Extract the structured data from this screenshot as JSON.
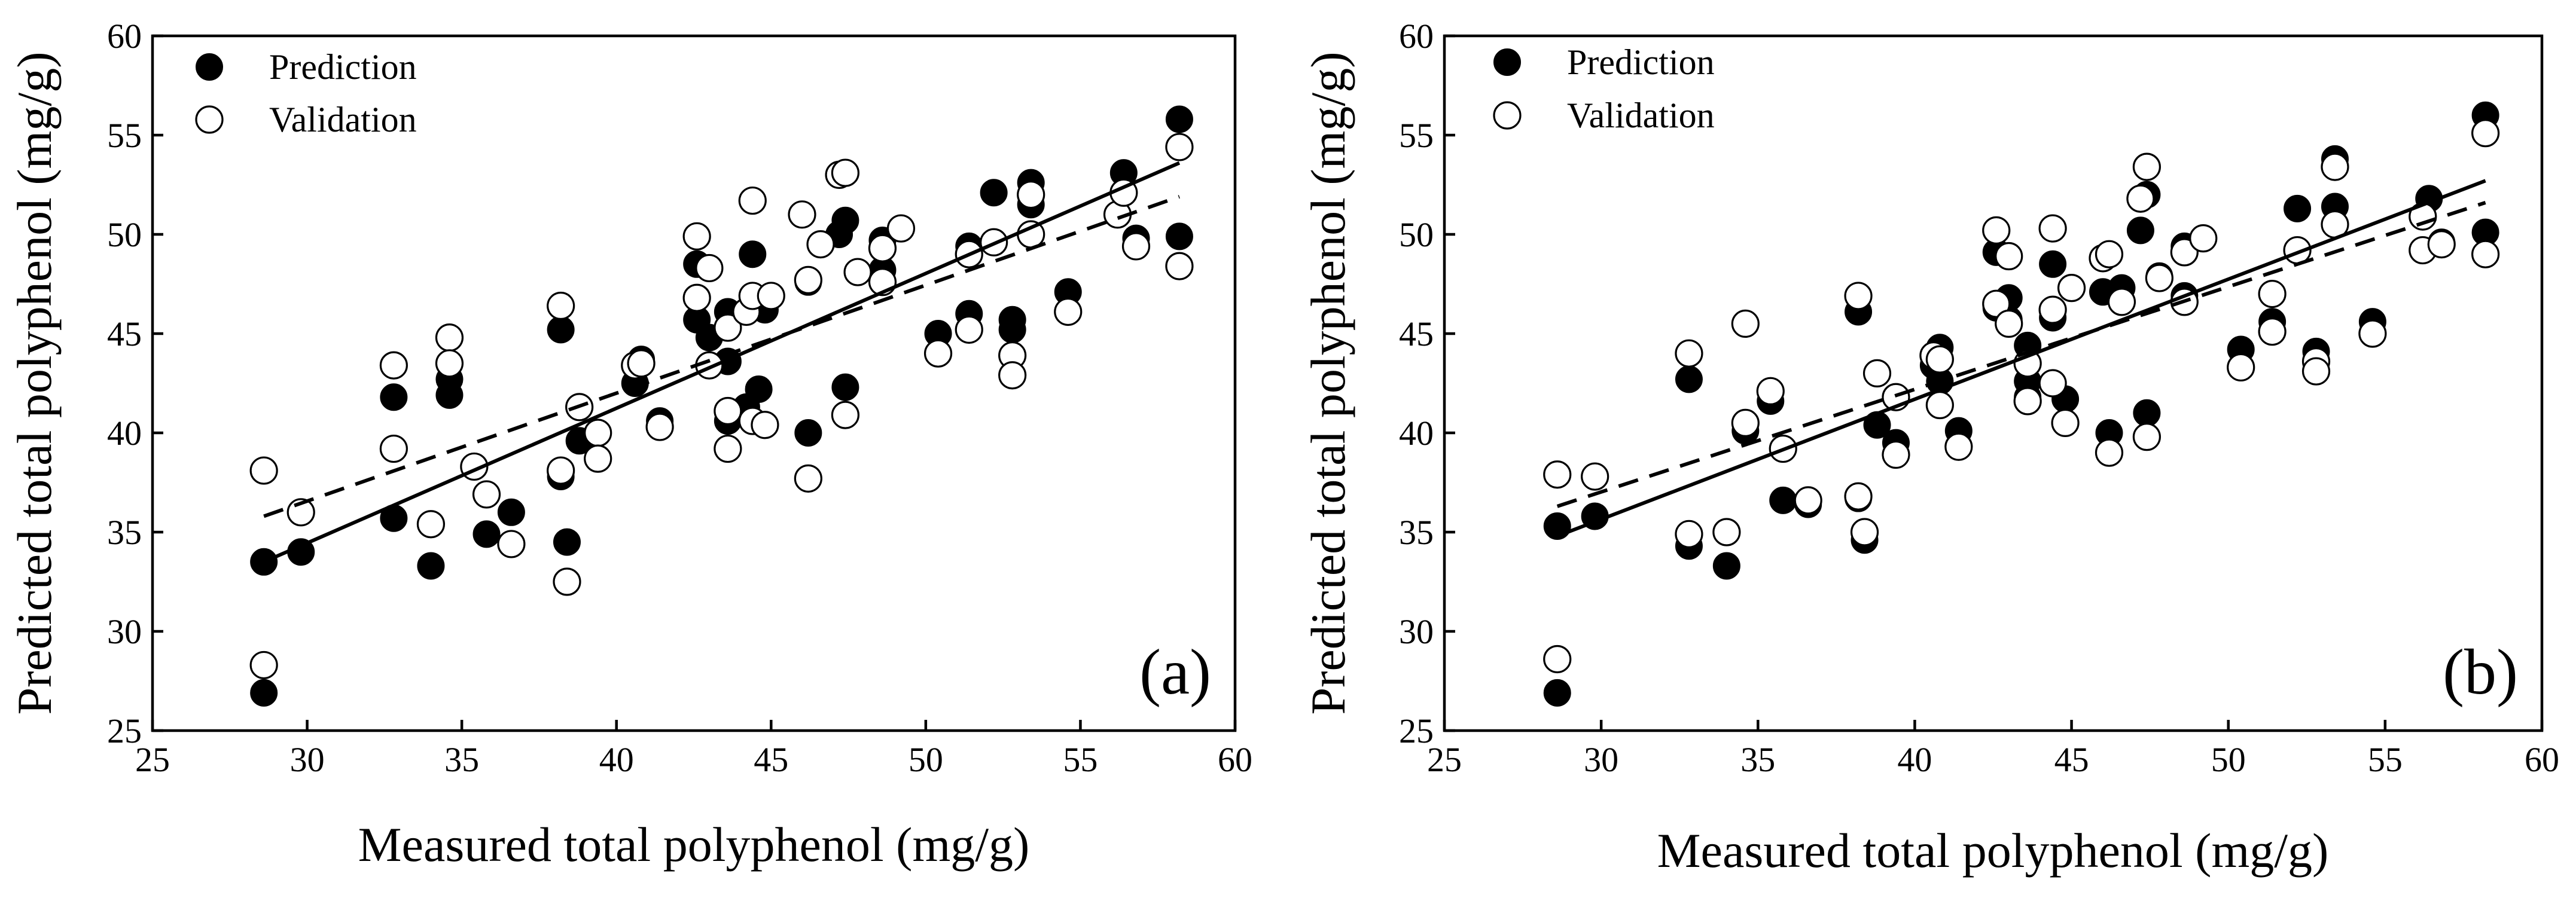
{
  "chart_data": [
    {
      "type": "scatter",
      "panel_label": "(a)",
      "xlabel": "Measured total polyphenol (mg/g)",
      "ylabel": "Predicted total polyphenol (mg/g)",
      "xlim": [
        25,
        60
      ],
      "ylim": [
        25,
        60
      ],
      "xticks": [
        "25",
        "30",
        "35",
        "40",
        "45",
        "50",
        "55",
        "60"
      ],
      "yticks": [
        "25",
        "30",
        "35",
        "40",
        "45",
        "50",
        "55",
        "60"
      ],
      "legend_position": "top-left",
      "series": [
        {
          "name": "Prediction",
          "marker": "filled-circle",
          "points": [
            [
              28.6,
              26.9
            ],
            [
              28.6,
              33.5
            ],
            [
              29.8,
              34.0
            ],
            [
              32.8,
              35.7
            ],
            [
              32.8,
              41.8
            ],
            [
              34.0,
              33.3
            ],
            [
              34.6,
              42.7
            ],
            [
              34.6,
              41.9
            ],
            [
              35.8,
              34.9
            ],
            [
              36.6,
              36.0
            ],
            [
              38.2,
              45.2
            ],
            [
              38.2,
              37.8
            ],
            [
              38.4,
              34.5
            ],
            [
              38.8,
              39.6
            ],
            [
              40.6,
              42.5
            ],
            [
              40.8,
              43.7
            ],
            [
              41.4,
              40.6
            ],
            [
              42.6,
              48.5
            ],
            [
              42.6,
              45.7
            ],
            [
              43.0,
              44.8
            ],
            [
              43.6,
              46.1
            ],
            [
              43.6,
              43.6
            ],
            [
              43.6,
              40.6
            ],
            [
              44.2,
              41.3
            ],
            [
              44.4,
              49.0
            ],
            [
              44.6,
              42.2
            ],
            [
              44.8,
              46.2
            ],
            [
              46.2,
              47.6
            ],
            [
              46.2,
              40.0
            ],
            [
              47.2,
              50.0
            ],
            [
              47.4,
              50.7
            ],
            [
              47.4,
              42.3
            ],
            [
              48.6,
              48.2
            ],
            [
              48.6,
              49.7
            ],
            [
              50.4,
              45.0
            ],
            [
              51.4,
              49.4
            ],
            [
              51.4,
              46.0
            ],
            [
              52.2,
              52.1
            ],
            [
              52.8,
              45.7
            ],
            [
              52.8,
              45.2
            ],
            [
              53.4,
              52.6
            ],
            [
              53.4,
              51.5
            ],
            [
              54.6,
              47.1
            ],
            [
              56.4,
              53.1
            ],
            [
              56.8,
              49.8
            ],
            [
              58.2,
              55.8
            ],
            [
              58.2,
              49.9
            ]
          ]
        },
        {
          "name": "Validation",
          "marker": "open-circle",
          "points": [
            [
              28.6,
              38.1
            ],
            [
              28.6,
              28.3
            ],
            [
              29.8,
              36.0
            ],
            [
              32.8,
              43.4
            ],
            [
              32.8,
              39.2
            ],
            [
              34.0,
              35.4
            ],
            [
              34.6,
              44.8
            ],
            [
              34.6,
              43.5
            ],
            [
              35.4,
              38.3
            ],
            [
              35.8,
              36.9
            ],
            [
              36.6,
              34.4
            ],
            [
              38.2,
              46.4
            ],
            [
              38.2,
              38.1
            ],
            [
              38.4,
              32.5
            ],
            [
              38.8,
              41.3
            ],
            [
              39.4,
              40.0
            ],
            [
              39.4,
              38.7
            ],
            [
              40.6,
              43.4
            ],
            [
              40.8,
              43.5
            ],
            [
              41.4,
              40.3
            ],
            [
              42.6,
              49.9
            ],
            [
              42.6,
              46.8
            ],
            [
              43.0,
              48.3
            ],
            [
              43.0,
              43.4
            ],
            [
              43.6,
              45.3
            ],
            [
              43.6,
              39.2
            ],
            [
              43.6,
              41.1
            ],
            [
              44.2,
              46.1
            ],
            [
              44.4,
              51.7
            ],
            [
              44.4,
              46.9
            ],
            [
              44.4,
              40.6
            ],
            [
              44.8,
              40.4
            ],
            [
              45.0,
              46.9
            ],
            [
              46.0,
              51.0
            ],
            [
              46.2,
              47.7
            ],
            [
              46.2,
              37.7
            ],
            [
              46.6,
              49.5
            ],
            [
              47.2,
              53.0
            ],
            [
              47.4,
              53.1
            ],
            [
              47.4,
              40.9
            ],
            [
              47.8,
              48.1
            ],
            [
              48.6,
              49.3
            ],
            [
              48.6,
              47.6
            ],
            [
              49.2,
              50.3
            ],
            [
              50.4,
              44.0
            ],
            [
              51.4,
              49.0
            ],
            [
              51.4,
              45.2
            ],
            [
              52.2,
              49.6
            ],
            [
              52.8,
              43.9
            ],
            [
              52.8,
              42.9
            ],
            [
              53.4,
              52.0
            ],
            [
              53.4,
              50.0
            ],
            [
              54.6,
              46.1
            ],
            [
              56.2,
              51.0
            ],
            [
              56.4,
              52.1
            ],
            [
              56.8,
              49.4
            ],
            [
              58.2,
              54.4
            ],
            [
              58.2,
              48.4
            ]
          ]
        }
      ],
      "fit_lines": [
        {
          "style": "solid",
          "x": [
            28.6,
            58.2
          ],
          "y": [
            33.5,
            53.6
          ]
        },
        {
          "style": "dashed",
          "x": [
            28.6,
            58.2
          ],
          "y": [
            35.8,
            51.9
          ]
        }
      ]
    },
    {
      "type": "scatter",
      "panel_label": "(b)",
      "xlabel": "Measured total polyphenol (mg/g)",
      "ylabel": "Predicted total polyphenol (mg/g)",
      "xlim": [
        25,
        60
      ],
      "ylim": [
        25,
        60
      ],
      "xticks": [
        "25",
        "30",
        "35",
        "40",
        "45",
        "50",
        "55",
        "60"
      ],
      "yticks": [
        "25",
        "30",
        "35",
        "40",
        "45",
        "50",
        "55",
        "60"
      ],
      "legend_position": "top-left",
      "series": [
        {
          "name": "Prediction",
          "marker": "filled-circle",
          "points": [
            [
              28.6,
              26.9
            ],
            [
              28.6,
              35.3
            ],
            [
              29.8,
              35.8
            ],
            [
              32.8,
              42.7
            ],
            [
              32.8,
              34.3
            ],
            [
              34.0,
              33.3
            ],
            [
              34.6,
              40.1
            ],
            [
              35.4,
              41.6
            ],
            [
              35.8,
              36.6
            ],
            [
              36.6,
              36.4
            ],
            [
              38.2,
              46.1
            ],
            [
              38.2,
              36.7
            ],
            [
              38.4,
              34.6
            ],
            [
              38.8,
              40.4
            ],
            [
              39.4,
              39.5
            ],
            [
              40.6,
              43.4
            ],
            [
              40.8,
              44.3
            ],
            [
              40.8,
              42.6
            ],
            [
              41.4,
              40.1
            ],
            [
              42.6,
              49.1
            ],
            [
              42.6,
              46.3
            ],
            [
              43.0,
              46.8
            ],
            [
              43.0,
              45.7
            ],
            [
              43.6,
              44.4
            ],
            [
              43.6,
              42.6
            ],
            [
              43.6,
              41.8
            ],
            [
              44.4,
              48.5
            ],
            [
              44.4,
              45.8
            ],
            [
              44.8,
              41.7
            ],
            [
              46.0,
              47.1
            ],
            [
              46.2,
              40.0
            ],
            [
              46.6,
              47.3
            ],
            [
              47.2,
              50.2
            ],
            [
              47.4,
              52.0
            ],
            [
              47.4,
              41.0
            ],
            [
              47.8,
              47.9
            ],
            [
              48.6,
              49.4
            ],
            [
              48.6,
              46.9
            ],
            [
              50.4,
              44.2
            ],
            [
              51.4,
              45.6
            ],
            [
              52.2,
              51.3
            ],
            [
              52.8,
              44.1
            ],
            [
              53.4,
              53.8
            ],
            [
              53.4,
              51.4
            ],
            [
              54.6,
              45.6
            ],
            [
              56.4,
              51.8
            ],
            [
              56.8,
              49.6
            ],
            [
              58.2,
              56.0
            ],
            [
              58.2,
              50.1
            ]
          ]
        },
        {
          "name": "Validation",
          "marker": "open-circle",
          "points": [
            [
              28.6,
              37.9
            ],
            [
              28.6,
              28.6
            ],
            [
              29.8,
              37.8
            ],
            [
              32.8,
              44.0
            ],
            [
              32.8,
              34.9
            ],
            [
              34.0,
              35.0
            ],
            [
              34.6,
              45.5
            ],
            [
              34.6,
              40.5
            ],
            [
              35.4,
              42.1
            ],
            [
              35.8,
              39.2
            ],
            [
              36.6,
              36.6
            ],
            [
              38.2,
              46.9
            ],
            [
              38.2,
              36.8
            ],
            [
              38.4,
              35.0
            ],
            [
              38.8,
              43.0
            ],
            [
              39.4,
              41.8
            ],
            [
              39.4,
              38.9
            ],
            [
              40.6,
              43.9
            ],
            [
              40.8,
              43.7
            ],
            [
              40.8,
              41.4
            ],
            [
              41.4,
              39.3
            ],
            [
              42.6,
              50.2
            ],
            [
              42.6,
              46.5
            ],
            [
              43.0,
              48.9
            ],
            [
              43.0,
              45.5
            ],
            [
              43.6,
              43.5
            ],
            [
              43.6,
              41.6
            ],
            [
              44.4,
              50.3
            ],
            [
              44.4,
              46.2
            ],
            [
              44.4,
              42.5
            ],
            [
              44.8,
              40.5
            ],
            [
              45.0,
              47.3
            ],
            [
              46.0,
              48.8
            ],
            [
              46.2,
              49.0
            ],
            [
              46.2,
              39.0
            ],
            [
              46.6,
              46.6
            ],
            [
              47.2,
              51.8
            ],
            [
              47.4,
              53.4
            ],
            [
              47.4,
              39.8
            ],
            [
              47.8,
              47.8
            ],
            [
              48.6,
              49.1
            ],
            [
              48.6,
              46.6
            ],
            [
              49.2,
              49.8
            ],
            [
              50.4,
              43.3
            ],
            [
              51.4,
              47.0
            ],
            [
              51.4,
              45.1
            ],
            [
              52.2,
              49.2
            ],
            [
              52.8,
              43.6
            ],
            [
              52.8,
              43.1
            ],
            [
              53.4,
              53.4
            ],
            [
              53.4,
              50.5
            ],
            [
              54.6,
              45.0
            ],
            [
              56.2,
              50.9
            ],
            [
              56.2,
              49.2
            ],
            [
              56.8,
              49.5
            ],
            [
              58.2,
              55.1
            ],
            [
              58.2,
              49.0
            ]
          ]
        }
      ],
      "fit_lines": [
        {
          "style": "solid",
          "x": [
            28.6,
            58.2
          ],
          "y": [
            34.8,
            52.7
          ]
        },
        {
          "style": "dashed",
          "x": [
            28.6,
            58.2
          ],
          "y": [
            36.3,
            51.6
          ]
        }
      ]
    }
  ]
}
